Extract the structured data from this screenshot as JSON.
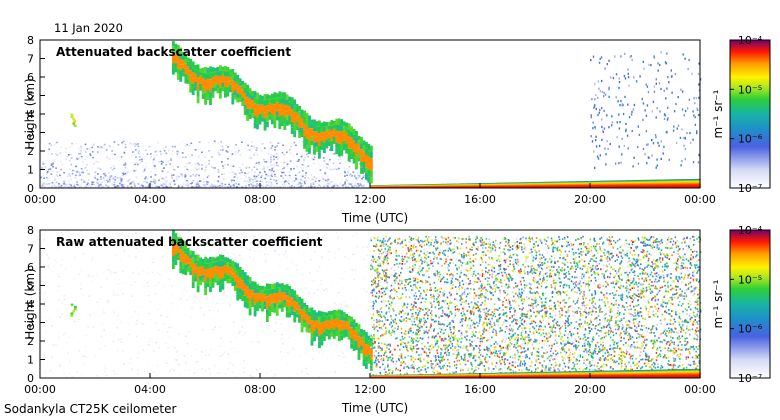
{
  "date": "11 Jan 2020",
  "footer": "Sodankyla CT25K ceilometer",
  "chart_data": [
    {
      "type": "heatmap",
      "title": "Attenuated backscatter coefficient",
      "xlabel": "Time (UTC)",
      "ylabel": "Height (km)",
      "xlim": [
        0,
        24
      ],
      "ylim": [
        0,
        8
      ],
      "xticks": [
        "00:00",
        "04:00",
        "08:00",
        "12:00",
        "16:00",
        "20:00",
        "00:00"
      ],
      "yticks": [
        "0",
        "1",
        "2",
        "3",
        "4",
        "5",
        "6",
        "7",
        "8"
      ],
      "colorbar": {
        "label": "m⁻¹ sr⁻¹",
        "ticks": [
          "10⁻⁷",
          "10⁻⁶",
          "10⁻⁵",
          "10⁻⁴"
        ],
        "range_log10": [
          -7,
          -4
        ]
      },
      "features": [
        {
          "name": "boundary layer noise",
          "t": [
            0,
            12
          ],
          "h": [
            0,
            2.5
          ],
          "log10": -6.6
        },
        {
          "name": "isolated cloud",
          "t": [
            1.1,
            1.3
          ],
          "h": [
            3.2,
            4.0
          ],
          "log10": -4.8
        },
        {
          "name": "descending cloud layer",
          "t": [
            4.8,
            12
          ],
          "h_top": [
            7.3,
            2.3
          ],
          "log10": -4.9
        },
        {
          "name": "surface layer",
          "t": [
            12,
            24
          ],
          "h": [
            0,
            0.6
          ],
          "log10": -4.7
        },
        {
          "name": "sparse high noise",
          "t": [
            20,
            24
          ],
          "h": [
            1,
            7.3
          ],
          "log10": -6.2
        }
      ]
    },
    {
      "type": "heatmap",
      "title": "Raw attenuated backscatter coefficient",
      "xlabel": "Time (UTC)",
      "ylabel": "Height (km)",
      "xlim": [
        0,
        24
      ],
      "ylim": [
        0,
        8
      ],
      "xticks": [
        "00:00",
        "04:00",
        "08:00",
        "12:00",
        "16:00",
        "20:00",
        "00:00"
      ],
      "yticks": [
        "0",
        "1",
        "2",
        "3",
        "4",
        "5",
        "6",
        "7",
        "8"
      ],
      "colorbar": {
        "label": "m⁻¹ sr⁻¹",
        "ticks": [
          "10⁻⁷",
          "10⁻⁶",
          "10⁻⁵",
          "10⁻⁴"
        ],
        "range_log10": [
          -7,
          -4
        ]
      },
      "features": [
        {
          "name": "raw noise field",
          "t": [
            0,
            12
          ],
          "h": [
            0,
            8
          ],
          "log10": -6.8
        },
        {
          "name": "descending cloud layer",
          "t": [
            4.8,
            12
          ],
          "h_top": [
            7.3,
            2.3
          ],
          "log10": -4.9
        },
        {
          "name": "dense raw noise",
          "t": [
            12,
            24
          ],
          "h": [
            0,
            7.6
          ],
          "log10": -5.8
        },
        {
          "name": "surface layer",
          "t": [
            12,
            24
          ],
          "h": [
            0,
            0.6
          ],
          "log10": -4.7
        }
      ]
    }
  ]
}
